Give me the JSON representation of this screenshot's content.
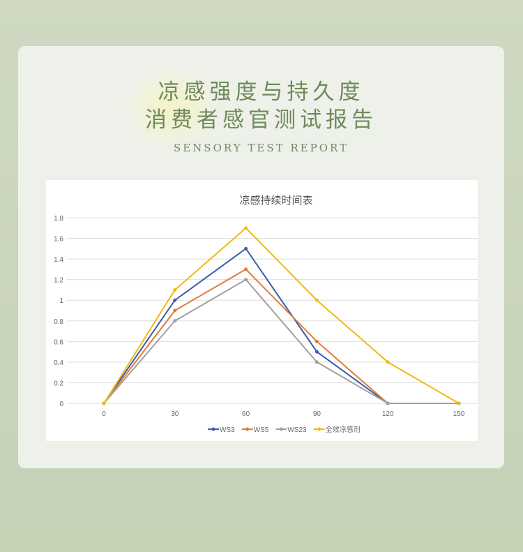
{
  "header": {
    "title_line1": "凉感强度与持久度",
    "title_line2": "消费者感官测试报告",
    "subtitle": "SENSORY TEST REPORT"
  },
  "chart_data": {
    "type": "line",
    "title": "凉感持续时间表",
    "x": [
      0,
      30,
      60,
      90,
      120,
      150
    ],
    "ylim": [
      0,
      1.8
    ],
    "yticks": [
      0,
      0.2,
      0.4,
      0.6,
      0.8,
      1,
      1.2,
      1.4,
      1.6,
      1.8
    ],
    "grid": true,
    "legend": "bottom",
    "series": [
      {
        "name": "WS3",
        "color": "#3a5dab",
        "values": [
          0,
          1,
          1.5,
          0.5,
          0,
          0
        ]
      },
      {
        "name": "WS5",
        "color": "#e07b39",
        "values": [
          0,
          0.9,
          1.3,
          0.6,
          0,
          0
        ]
      },
      {
        "name": "WS23",
        "color": "#a0a0a0",
        "values": [
          0,
          0.8,
          1.2,
          0.4,
          0,
          0
        ]
      },
      {
        "name": "全效凉感剂",
        "color": "#f2b90f",
        "values": [
          0,
          1.1,
          1.7,
          1,
          0.4,
          0
        ]
      }
    ]
  }
}
